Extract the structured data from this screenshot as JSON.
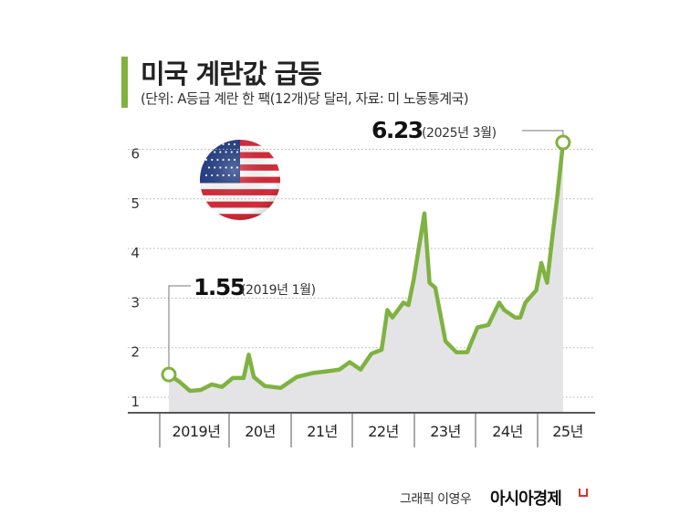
{
  "header": {
    "title": "미국 계란값 급등",
    "subtitle": "(단위: A등급 계란 한 팩(12개)당 달러, 자료: 미 노동통계국)"
  },
  "footer": {
    "credit": "그래픽 이영우",
    "brand": "아시아경제"
  },
  "colors": {
    "accent": "#7fb241",
    "area": "#e4e4e6",
    "grid": "#b0b0b0"
  },
  "icons": {
    "flag": "us-flag-icon"
  },
  "chart_data": {
    "type": "area",
    "ylim": [
      1,
      6.5
    ],
    "yticks": [
      1,
      2,
      3,
      4,
      5,
      6
    ],
    "xlabels": [
      "2019년",
      "20년",
      "21년",
      "22년",
      "23년",
      "24년",
      "25년"
    ],
    "x": [
      2019.0,
      2019.17,
      2019.33,
      2019.5,
      2019.67,
      2019.83,
      2020.0,
      2020.08,
      2020.17,
      2020.25,
      2020.33,
      2020.5,
      2020.75,
      2021.0,
      2021.25,
      2021.5,
      2021.67,
      2021.83,
      2022.0,
      2022.17,
      2022.33,
      2022.42,
      2022.5,
      2022.67,
      2022.75,
      2022.83,
      2023.0,
      2023.08,
      2023.17,
      2023.33,
      2023.5,
      2023.58,
      2023.67,
      2023.83,
      2024.0,
      2024.17,
      2024.25,
      2024.42,
      2024.5,
      2024.58,
      2024.75,
      2024.83,
      2024.92,
      2025.0,
      2025.08,
      2025.17
    ],
    "values": [
      1.55,
      1.4,
      1.22,
      1.24,
      1.35,
      1.3,
      1.48,
      1.48,
      1.48,
      1.95,
      1.5,
      1.32,
      1.28,
      1.5,
      1.58,
      1.62,
      1.65,
      1.8,
      1.65,
      1.97,
      2.05,
      2.85,
      2.7,
      3.0,
      2.95,
      3.45,
      4.8,
      3.4,
      3.3,
      2.22,
      2.0,
      2.0,
      2.0,
      2.5,
      2.55,
      3.0,
      2.85,
      2.7,
      2.7,
      3.0,
      3.25,
      3.8,
      3.4,
      4.3,
      5.15,
      6.23
    ],
    "annotations": [
      {
        "value": "1.55",
        "label": "(2019년 1월)"
      },
      {
        "value": "6.23",
        "label": "(2025년 3월)"
      }
    ]
  }
}
